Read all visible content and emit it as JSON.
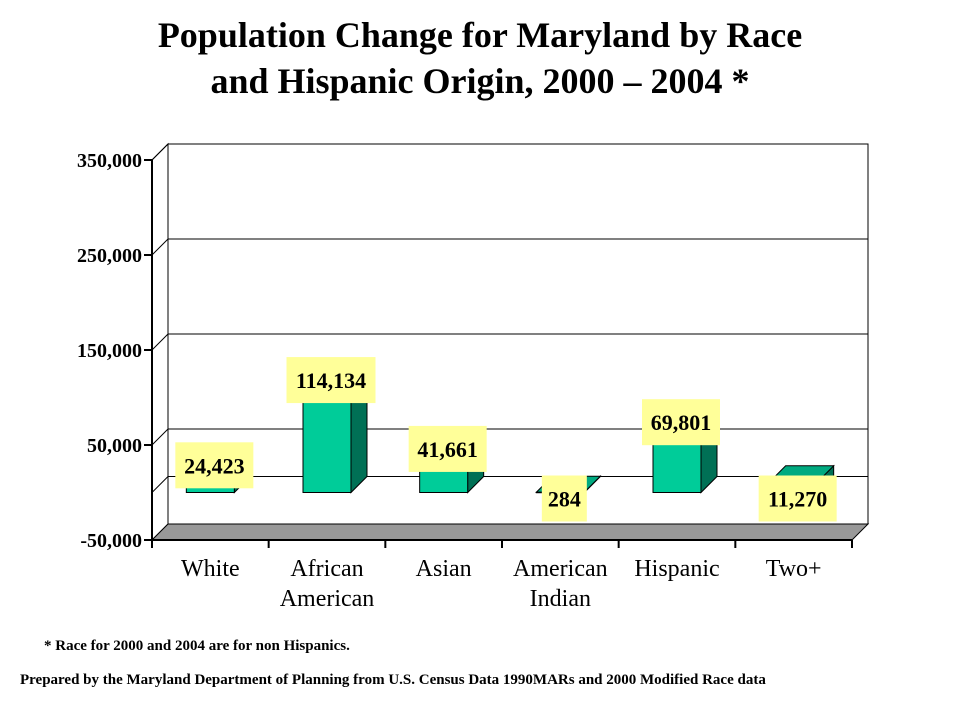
{
  "title_line1": "Population Change for Maryland by Race",
  "title_line2": "and Hispanic Origin, 2000 – 2004 *",
  "footnote": "* Race  for  2000 and 2004 are for non Hispanics.",
  "credit": "Prepared by the Maryland Department of Planning from U.S. Census Data 1990MARs and 2000 Modified Race data",
  "colors": {
    "bar_front": "#00cc99",
    "bar_side": "#007055",
    "bar_top": "#00aa80",
    "floor": "#999999",
    "label_bg": "#ffff99",
    "grid": "#000000"
  },
  "chart_data": {
    "type": "bar",
    "categories": [
      "White",
      "African American",
      "Asian",
      "American Indian",
      "Hispanic",
      "Two+"
    ],
    "category_lines": [
      [
        "White"
      ],
      [
        "African",
        "American"
      ],
      [
        "Asian"
      ],
      [
        "American",
        "Indian"
      ],
      [
        "Hispanic"
      ],
      [
        "Two+"
      ]
    ],
    "values": [
      24423,
      114134,
      41661,
      284,
      69801,
      11270
    ],
    "data_labels": [
      "24,423",
      "114,134",
      "41,661",
      "284",
      "69,801",
      "11,270"
    ],
    "yticks": [
      -50000,
      50000,
      150000,
      250000,
      350000
    ],
    "ytick_labels": [
      "-50,000",
      "50,000",
      "150,000",
      "250,000",
      "350,000"
    ],
    "ylim": [
      -50000,
      350000
    ],
    "grid": true,
    "style": "3d"
  }
}
